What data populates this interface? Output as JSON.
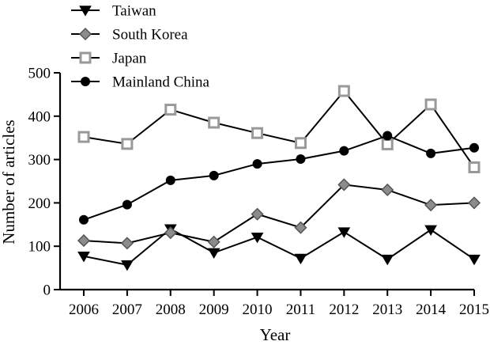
{
  "chart_data": {
    "type": "line",
    "xlabel": "Year",
    "ylabel": "Number of articles",
    "ylim": [
      0,
      500
    ],
    "yticks": [
      "0",
      "100",
      "200",
      "300",
      "400",
      "500"
    ],
    "categories": [
      "2006",
      "2007",
      "2008",
      "2009",
      "2010",
      "2011",
      "2012",
      "2013",
      "2014",
      "2015"
    ],
    "legend_position": "top-left",
    "grid": false,
    "series": [
      {
        "name": "Taiwan",
        "marker": "triangle-down",
        "marker_fill": "#000000",
        "values": [
          77,
          57,
          140,
          85,
          121,
          72,
          133,
          70,
          138,
          70
        ]
      },
      {
        "name": "South Korea",
        "marker": "diamond",
        "marker_fill": "#8c8c8c",
        "values": [
          113,
          107,
          131,
          110,
          174,
          143,
          242,
          230,
          195,
          200
        ]
      },
      {
        "name": "Japan",
        "marker": "square-open",
        "marker_fill": "#ffffff",
        "marker_stroke": "#999999",
        "values": [
          352,
          336,
          415,
          385,
          361,
          338,
          458,
          335,
          427,
          282
        ]
      },
      {
        "name": "Mainland China",
        "marker": "circle",
        "marker_fill": "#000000",
        "values": [
          161,
          196,
          252,
          263,
          290,
          301,
          320,
          355,
          314,
          327
        ]
      }
    ]
  }
}
